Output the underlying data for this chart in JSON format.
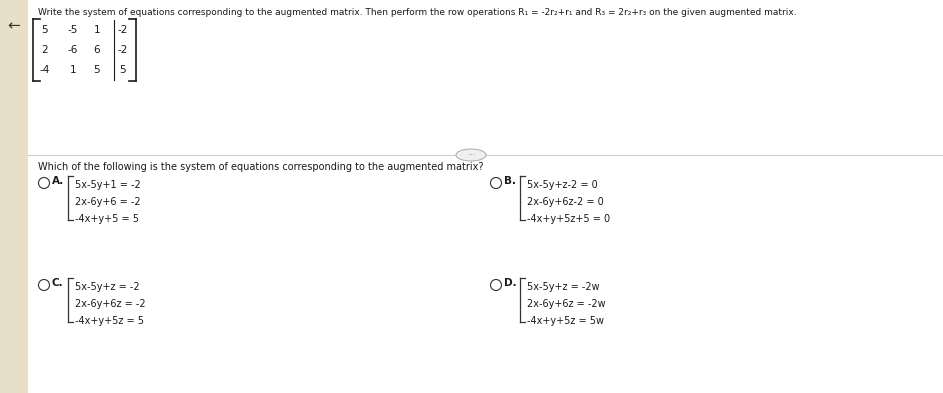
{
  "bg_left": "#e8dfc8",
  "bg_right": "#e8dfc8",
  "panel_bg": "#ffffff",
  "title_text": "Write the system of equations corresponding to the augmented matrix. Then perform the row operations R₁ = -2r₂+r₁ and R₃ = 2r₂+r₃ on the given augmented matrix.",
  "matrix_rows": [
    [
      "5",
      "-5",
      "1",
      "-2"
    ],
    [
      "2",
      "-6",
      "6",
      "-2"
    ],
    [
      "-4",
      "1",
      "5",
      "5"
    ]
  ],
  "question_text": "Which of the following is the system of equations corresponding to the augmented matrix?",
  "option_A_label": "A.",
  "option_A_lines": [
    "5x-5y+1 = -2",
    "2x-6y+6 = -2",
    "-4x+y+5 = 5"
  ],
  "option_B_label": "B.",
  "option_B_lines": [
    "5x-5y+z-2 = 0",
    "2x-6y+6z-2 = 0",
    "-4x+y+5z+5 = 0"
  ],
  "option_C_label": "C.",
  "option_C_lines": [
    "5x-5y+z = -2",
    "2x-6y+6z = -2",
    "-4x+y+5z = 5"
  ],
  "option_D_label": "D.",
  "option_D_lines": [
    "5x-5y+z = -2w",
    "2x-6y+6z = -2w",
    "-4x+y+5z = 5w"
  ],
  "text_color": "#1a1a1a",
  "radio_color": "#333333",
  "divider_color": "#cccccc",
  "font_size_title": 6.5,
  "font_size_matrix": 7.5,
  "font_size_question": 7.0,
  "font_size_option_label": 7.5,
  "font_size_option_text": 7.0
}
